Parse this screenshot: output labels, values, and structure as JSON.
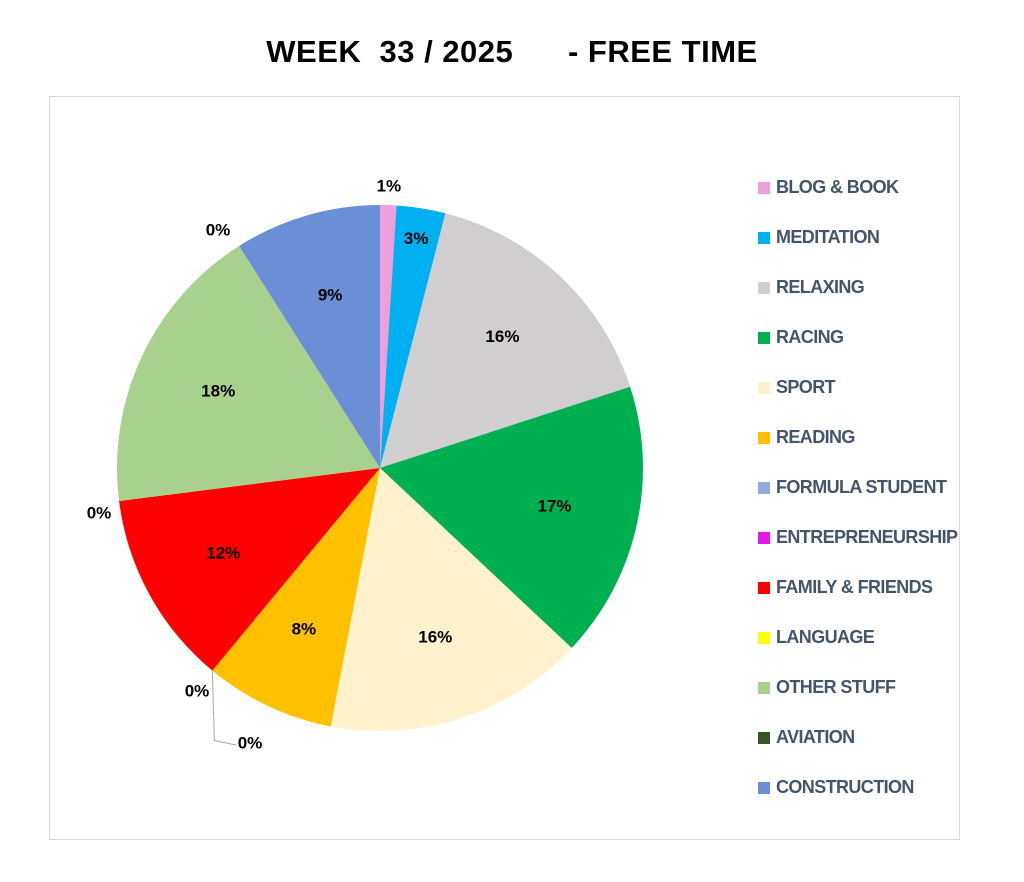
{
  "chart_data": {
    "type": "pie",
    "title": "WEEK  33 / 2025      - FREE TIME",
    "legend_position": "right",
    "slices": [
      {
        "name": "BLOG & BOOK",
        "value": 1,
        "label": "1%",
        "color": "#ed9fdb"
      },
      {
        "name": "MEDITATION",
        "value": 3,
        "label": "3%",
        "color": "#00b0f0"
      },
      {
        "name": "RELAXING",
        "value": 16,
        "label": "16%",
        "color": "#d0cece"
      },
      {
        "name": "RACING",
        "value": 17,
        "label": "17%",
        "color": "#00b050"
      },
      {
        "name": "SPORT",
        "value": 16,
        "label": "16%",
        "color": "#fff2cc"
      },
      {
        "name": "READING",
        "value": 8,
        "label": "8%",
        "color": "#ffc000"
      },
      {
        "name": "FORMULA STUDENT",
        "value": 0,
        "label": "0%",
        "color": "#8faadc"
      },
      {
        "name": "ENTREPRENEURSHIP",
        "value": 0,
        "label": "0%",
        "color": "#e619e6"
      },
      {
        "name": "FAMILY & FRIENDS",
        "value": 12,
        "label": "12%",
        "color": "#ff0000"
      },
      {
        "name": "LANGUAGE",
        "value": 0,
        "label": "0%",
        "color": "#ffff00"
      },
      {
        "name": "OTHER STUFF",
        "value": 18,
        "label": "18%",
        "color": "#a9d18e"
      },
      {
        "name": "AVIATION",
        "value": 0,
        "label": "0%",
        "color": "#375623"
      },
      {
        "name": "CONSTRUCTION",
        "value": 9,
        "label": "9%",
        "color": "#6b8fd6"
      }
    ]
  }
}
